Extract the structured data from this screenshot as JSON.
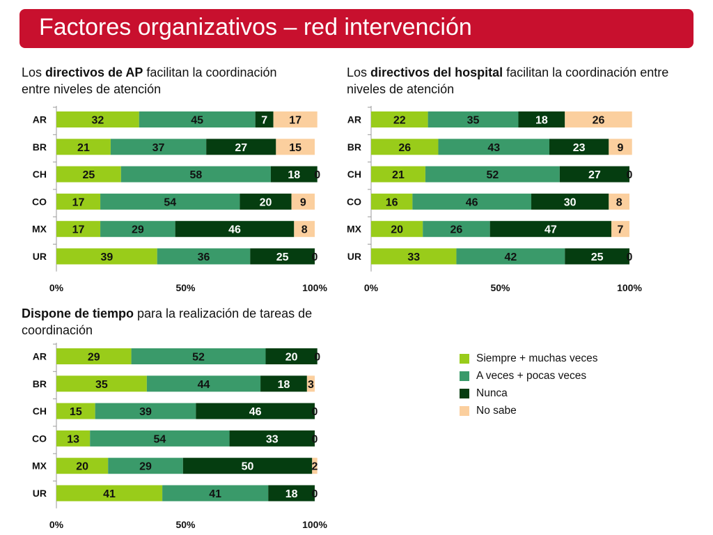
{
  "title": "Factores organizativos – red intervención",
  "colors": {
    "title_bg": "#c8102e",
    "series": [
      "#99cc1a",
      "#3a9a6a",
      "#053d10",
      "#fbcf9e"
    ]
  },
  "chart_data": [
    {
      "type": "bar",
      "orientation": "horizontal",
      "stacked": "percent",
      "subtitle_bold": "directivos de AP",
      "subtitle_pre": "Los ",
      "subtitle_post": " facilitan la coordinación entre niveles de atención",
      "categories": [
        "AR",
        "BR",
        "CH",
        "CO",
        "MX",
        "UR"
      ],
      "series": [
        {
          "name": "Siempre + muchas veces",
          "values": [
            32,
            21,
            25,
            17,
            17,
            39
          ]
        },
        {
          "name": "A veces + pocas veces",
          "values": [
            45,
            37,
            58,
            54,
            29,
            36
          ]
        },
        {
          "name": "Nunca",
          "values": [
            7,
            27,
            18,
            20,
            46,
            25
          ]
        },
        {
          "name": "No sabe",
          "values": [
            17,
            15,
            0,
            9,
            8,
            0
          ]
        }
      ],
      "xticks": [
        "0%",
        "50%",
        "100%"
      ],
      "xlim": [
        0,
        100
      ]
    },
    {
      "type": "bar",
      "orientation": "horizontal",
      "stacked": "percent",
      "subtitle_pre": "Los ",
      "subtitle_bold": "directivos del hospital",
      "subtitle_post": " facilitan la coordinación entre niveles de atención",
      "categories": [
        "AR",
        "BR",
        "CH",
        "CO",
        "MX",
        "UR"
      ],
      "series": [
        {
          "name": "Siempre + muchas veces",
          "values": [
            22,
            26,
            21,
            16,
            20,
            33
          ]
        },
        {
          "name": "A veces + pocas veces",
          "values": [
            35,
            43,
            52,
            46,
            26,
            42
          ]
        },
        {
          "name": "Nunca",
          "values": [
            18,
            23,
            27,
            30,
            47,
            25
          ]
        },
        {
          "name": "No sabe",
          "values": [
            26,
            9,
            0,
            8,
            7,
            0
          ]
        }
      ],
      "xticks": [
        "0%",
        "50%",
        "100%"
      ],
      "xlim": [
        0,
        100
      ]
    },
    {
      "type": "bar",
      "orientation": "horizontal",
      "stacked": "percent",
      "subtitle_pre": "",
      "subtitle_bold": "Dispone de tiempo",
      "subtitle_post": " para la realización de tareas de coordinación",
      "categories": [
        "AR",
        "BR",
        "CH",
        "CO",
        "MX",
        "UR"
      ],
      "series": [
        {
          "name": "Siempre + muchas veces",
          "values": [
            29,
            35,
            15,
            13,
            20,
            41
          ]
        },
        {
          "name": "A veces + pocas veces",
          "values": [
            52,
            44,
            39,
            54,
            29,
            41
          ]
        },
        {
          "name": "Nunca",
          "values": [
            20,
            18,
            46,
            33,
            50,
            18
          ]
        },
        {
          "name": "No sabe",
          "values": [
            0,
            3,
            0,
            0,
            2,
            0
          ]
        }
      ],
      "xticks": [
        "0%",
        "50%",
        "100%"
      ],
      "xlim": [
        0,
        100
      ]
    }
  ],
  "legend": [
    {
      "label": "Siempre + muchas veces",
      "color": "#99cc1a"
    },
    {
      "label": "A veces + pocas veces",
      "color": "#3a9a6a"
    },
    {
      "label": "Nunca",
      "color": "#053d10"
    },
    {
      "label": "No sabe",
      "color": "#fbcf9e"
    }
  ]
}
